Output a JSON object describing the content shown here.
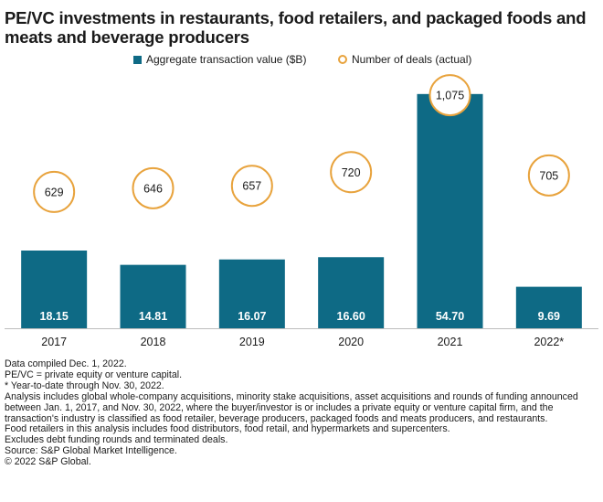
{
  "title": "PE/VC investments in restaurants, food retailers, and packaged foods and meats and beverage producers",
  "chart_data": {
    "type": "bar",
    "categories": [
      "2017",
      "2018",
      "2019",
      "2020",
      "2021",
      "2022*"
    ],
    "series": [
      {
        "name": "Aggregate transaction value ($B)",
        "type": "bar",
        "color": "#0e6a85",
        "values": [
          18.15,
          14.81,
          16.07,
          16.6,
          54.7,
          9.69
        ],
        "labels": [
          "18.15",
          "14.81",
          "16.07",
          "16.60",
          "54.70",
          "9.69"
        ]
      },
      {
        "name": "Number of deals (actual)",
        "type": "circle-marker",
        "color": "#e8a33d",
        "values": [
          629,
          646,
          657,
          720,
          1075,
          705
        ],
        "labels": [
          "629",
          "646",
          "657",
          "720",
          "1,075",
          "705"
        ]
      }
    ],
    "ylim": [
      0,
      60
    ],
    "y2lim": [
      0,
      1185
    ],
    "grid": false,
    "legend_position": "top-center",
    "xlabel": "",
    "ylabel": ""
  },
  "footnotes": [
    "Data compiled Dec. 1, 2022.",
    "PE/VC = private equity or venture capital.",
    "* Year-to-date through Nov. 30, 2022.",
    "Analysis includes global whole-company acquisitions, minority stake acquisitions, asset acquisitions and rounds of funding announced between Jan. 1, 2017, and Nov. 30, 2022, where the buyer/investor is or includes a private equity or venture capital firm, and the transaction's industry is classified as food retailer, beverage producers, packaged foods and meats producers, and restaurants.",
    "Food retailers in this analysis includes food distributors, food retail, and hypermarkets and supercenters.",
    "Excludes debt funding rounds and terminated deals.",
    "Source: S&P Global Market Intelligence.",
    "© 2022 S&P Global."
  ]
}
